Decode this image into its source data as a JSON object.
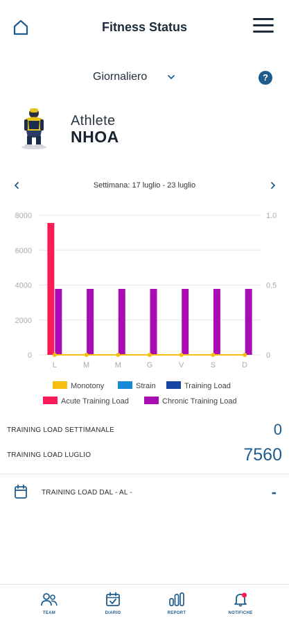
{
  "header": {
    "title": "Fitness Status",
    "home_icon": "home-icon",
    "menu_icon": "hamburger-menu-icon"
  },
  "period": {
    "selected": "Giornaliero",
    "help_label": "?"
  },
  "athlete": {
    "label": "Athlete",
    "name": "NHOA"
  },
  "week": {
    "label": "Settimana: 17 luglio - 23 luglio"
  },
  "colors": {
    "monotony": "#f5bf0d",
    "strain": "#1588d6",
    "training_load": "#1746a2",
    "acute": "#fa1b57",
    "chronic": "#aa0cb4",
    "accent": "#1f5c8e"
  },
  "chart_data": {
    "type": "bar",
    "categories": [
      "L",
      "M",
      "M",
      "G",
      "V",
      "S",
      "D"
    ],
    "y_left_ticks": [
      "0",
      "2000",
      "4000",
      "6000",
      "8000"
    ],
    "y_right_ticks": [
      "0",
      "0.5",
      "1.0"
    ],
    "ylim": [
      0,
      8000
    ],
    "y2lim": [
      0,
      1.0
    ],
    "grid": true,
    "legend_placement": "bottom",
    "series": [
      {
        "name": "Monotony",
        "type": "line",
        "axis": "right",
        "values": [
          0,
          0,
          0,
          0,
          0,
          0,
          0
        ]
      },
      {
        "name": "Strain",
        "type": "bar",
        "values": [
          0,
          0,
          0,
          0,
          0,
          0,
          0
        ]
      },
      {
        "name": "Training Load",
        "type": "bar",
        "values": [
          0,
          0,
          0,
          0,
          0,
          0,
          0
        ]
      },
      {
        "name": "Acute Training Load",
        "type": "bar",
        "values": [
          7560,
          0,
          0,
          0,
          0,
          0,
          0
        ]
      },
      {
        "name": "Chronic Training Load",
        "type": "bar",
        "values": [
          3780,
          3780,
          3780,
          3780,
          3780,
          3780,
          3780
        ]
      }
    ]
  },
  "stats": [
    {
      "label": "TRAINING LOAD SETTIMANALE",
      "value": "0"
    },
    {
      "label": "TRAINING LOAD LUGLIO",
      "value": "7560"
    }
  ],
  "range": {
    "label": "TRAINING LOAD DAL - AL -",
    "value": "-"
  },
  "nav": [
    {
      "label": "TEAM",
      "icon": "team-icon"
    },
    {
      "label": "DIARIO",
      "icon": "calendar-check-icon"
    },
    {
      "label": "REPORT",
      "icon": "bar-chart-icon"
    },
    {
      "label": "NOTIFICHE",
      "icon": "bell-icon"
    }
  ]
}
